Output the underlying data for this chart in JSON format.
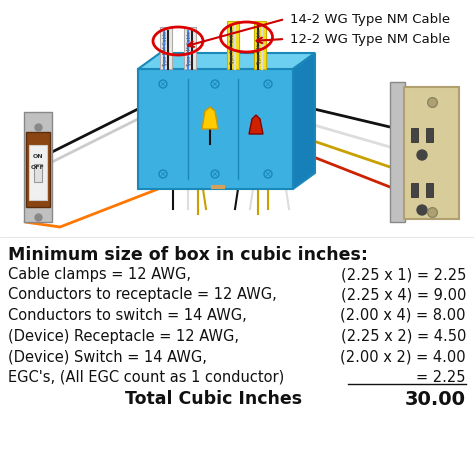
{
  "title": "Minimum size of box in cubic inches:",
  "rows": [
    {
      "left": "Cable clamps = 12 AWG,",
      "right": "(2.25 x 1) = 2.25"
    },
    {
      "left": "Conductors to receptacle = 12 AWG,",
      "right": "(2.25 x 4) = 9.00"
    },
    {
      "left": "Conductors to switch = 14 AWG,",
      "right": "(2.00 x 4) = 8.00"
    },
    {
      "left": "(Device) Receptacle = 12 AWG,",
      "right": "(2.25 x 2) = 4.50"
    },
    {
      "left": "(Device) Switch = 14 AWG,",
      "right": "(2.00 x 2) = 4.00"
    },
    {
      "left": "EGC's, (All EGC count as 1 conductor)",
      "right": "= 2.25",
      "underline": true
    }
  ],
  "total_label": "Total Cubic Inches",
  "total_value": "30.00",
  "bg_color": "#ffffff",
  "text_color": "#000000",
  "title_fontsize": 12.5,
  "row_fontsize": 10.5,
  "total_fontsize": 12.5,
  "label_14_2": "14-2 WG Type NM Cable",
  "label_12_2": "12-2 WG Type NM Cable",
  "box_color": "#3cb0e0",
  "box_top_color": "#6dd0f0",
  "box_right_color": "#1880b8",
  "cable_white_color": "#f0f0f0",
  "cable_yellow_color": "#f5e642",
  "arrow_color": "#cc0000",
  "diagram_bg": "#ffffff"
}
